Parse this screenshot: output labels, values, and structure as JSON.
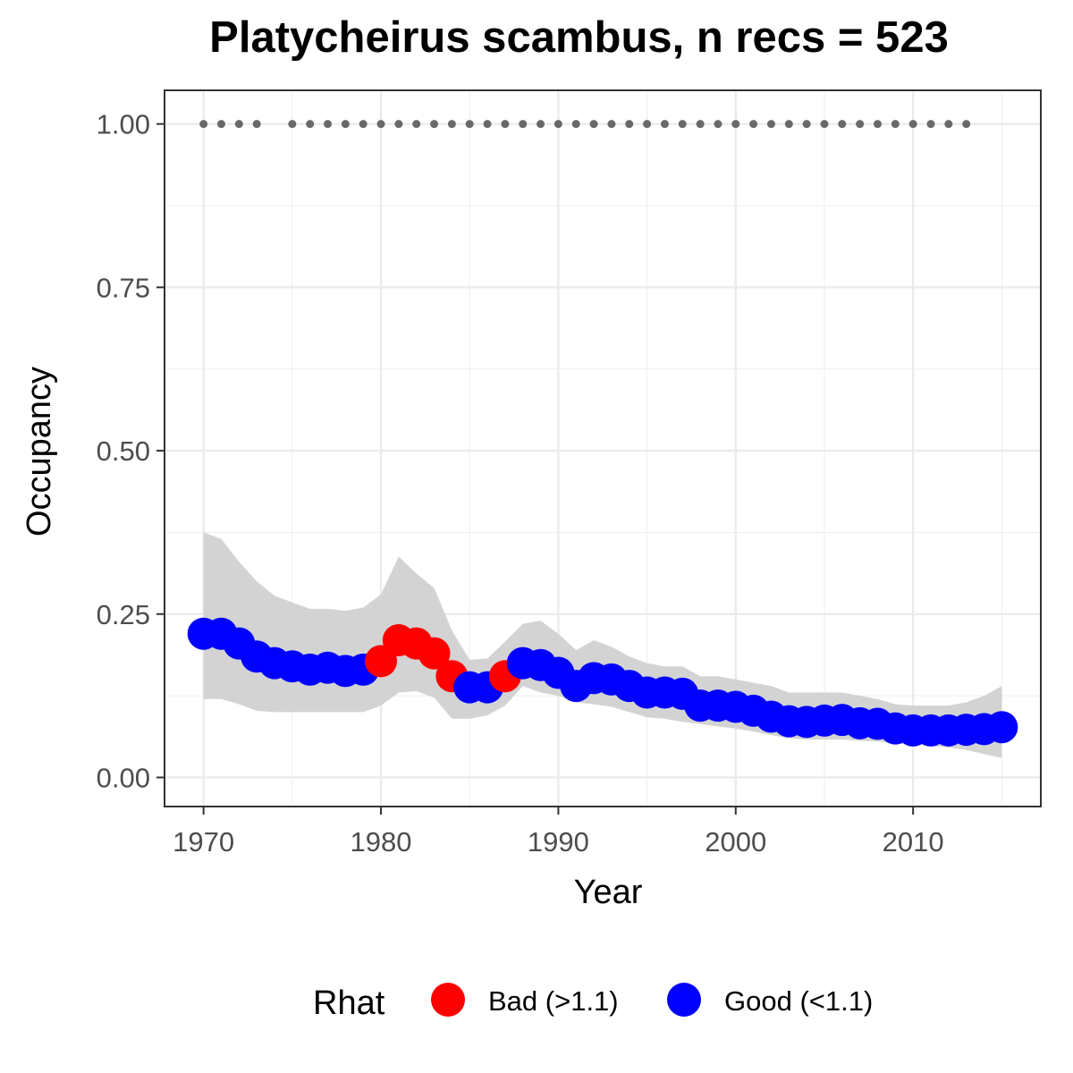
{
  "chart_data": {
    "type": "scatter",
    "title": "Platycheirus scambus, n recs = 523",
    "xlabel": "Year",
    "ylabel": "Occupancy",
    "xlim": [
      1967.8,
      1917.2
    ],
    "ylim": [
      -0.0445,
      1.0515
    ],
    "x_ticks": [
      1970,
      1980,
      1990,
      2000,
      2010
    ],
    "x_tick_labels": [
      "1970",
      "1980",
      "1990",
      "2000",
      "2010"
    ],
    "y_ticks": [
      0,
      0.25,
      0.5,
      0.75,
      1.0
    ],
    "y_tick_labels": [
      "0.00",
      "0.25",
      "0.50",
      "0.75",
      "1.00"
    ],
    "grid": true,
    "legend_position": "bottom",
    "legend": {
      "title": "Rhat",
      "entries": [
        {
          "label": "Bad (>1.1)",
          "color": "#ff0000"
        },
        {
          "label": "Good (<1.1)",
          "color": "#0000ff"
        }
      ]
    },
    "colors": {
      "bad": "#ff0000",
      "good": "#0000ff",
      "ribbon": "#d3d3d3",
      "record_dots": "#696969"
    },
    "series": [
      {
        "name": "Occupancy estimate",
        "x": [
          1970,
          1971,
          1972,
          1973,
          1974,
          1975,
          1976,
          1977,
          1978,
          1979,
          1980,
          1981,
          1982,
          1983,
          1984,
          1985,
          1986,
          1987,
          1988,
          1989,
          1990,
          1991,
          1992,
          1993,
          1994,
          1995,
          1996,
          1997,
          1998,
          1999,
          2000,
          2001,
          2002,
          2003,
          2004,
          2005,
          2006,
          2007,
          2008,
          2009,
          2010,
          2011,
          2012,
          2013,
          2014,
          2015
        ],
        "y": [
          0.22,
          0.22,
          0.205,
          0.185,
          0.175,
          0.17,
          0.165,
          0.168,
          0.163,
          0.165,
          0.178,
          0.21,
          0.205,
          0.19,
          0.155,
          0.138,
          0.138,
          0.155,
          0.175,
          0.172,
          0.16,
          0.14,
          0.152,
          0.15,
          0.14,
          0.13,
          0.13,
          0.128,
          0.11,
          0.11,
          0.108,
          0.102,
          0.093,
          0.086,
          0.085,
          0.087,
          0.088,
          0.083,
          0.082,
          0.075,
          0.072,
          0.072,
          0.072,
          0.073,
          0.074,
          0.077
        ],
        "rhat": [
          "Good",
          "Good",
          "Good",
          "Good",
          "Good",
          "Good",
          "Good",
          "Good",
          "Good",
          "Good",
          "Bad",
          "Bad",
          "Bad",
          "Bad",
          "Bad",
          "Good",
          "Good",
          "Bad",
          "Good",
          "Good",
          "Good",
          "Good",
          "Good",
          "Good",
          "Good",
          "Good",
          "Good",
          "Good",
          "Good",
          "Good",
          "Good",
          "Good",
          "Good",
          "Good",
          "Good",
          "Good",
          "Good",
          "Good",
          "Good",
          "Good",
          "Good",
          "Good",
          "Good",
          "Good",
          "Good",
          "Good"
        ],
        "lower": [
          0.12,
          0.12,
          0.112,
          0.102,
          0.1,
          0.1,
          0.1,
          0.1,
          0.1,
          0.1,
          0.11,
          0.13,
          0.132,
          0.122,
          0.09,
          0.09,
          0.095,
          0.11,
          0.14,
          0.13,
          0.125,
          0.115,
          0.112,
          0.108,
          0.1,
          0.092,
          0.09,
          0.085,
          0.082,
          0.078,
          0.075,
          0.07,
          0.065,
          0.06,
          0.058,
          0.058,
          0.058,
          0.056,
          0.055,
          0.052,
          0.05,
          0.048,
          0.046,
          0.042,
          0.036,
          0.03
        ],
        "upper": [
          0.375,
          0.365,
          0.33,
          0.3,
          0.278,
          0.268,
          0.258,
          0.258,
          0.255,
          0.26,
          0.28,
          0.338,
          0.312,
          0.29,
          0.225,
          0.18,
          0.182,
          0.208,
          0.235,
          0.24,
          0.22,
          0.195,
          0.21,
          0.2,
          0.185,
          0.175,
          0.17,
          0.17,
          0.155,
          0.155,
          0.15,
          0.145,
          0.14,
          0.13,
          0.13,
          0.13,
          0.13,
          0.125,
          0.12,
          0.112,
          0.11,
          0.11,
          0.11,
          0.115,
          0.125,
          0.14
        ]
      },
      {
        "name": "Years with records",
        "x": [
          1970,
          1971,
          1972,
          1973,
          1975,
          1976,
          1977,
          1978,
          1979,
          1980,
          1981,
          1982,
          1983,
          1984,
          1985,
          1986,
          1987,
          1988,
          1989,
          1990,
          1991,
          1992,
          1993,
          1994,
          1995,
          1996,
          1997,
          1998,
          1999,
          2000,
          2001,
          2002,
          2003,
          2004,
          2005,
          2006,
          2007,
          2008,
          2009,
          2010,
          2011,
          2012,
          2013
        ],
        "y": 1.0
      }
    ]
  }
}
